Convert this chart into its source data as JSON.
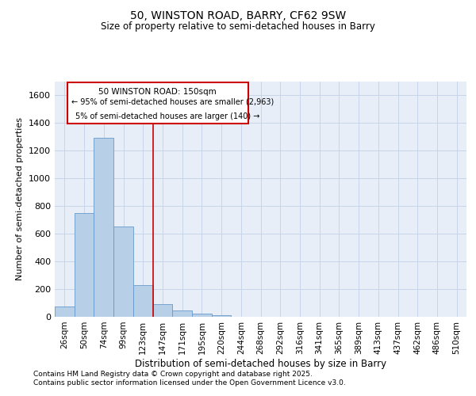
{
  "title1": "50, WINSTON ROAD, BARRY, CF62 9SW",
  "title2": "Size of property relative to semi-detached houses in Barry",
  "xlabel": "Distribution of semi-detached houses by size in Barry",
  "ylabel": "Number of semi-detached properties",
  "categories": [
    "26sqm",
    "50sqm",
    "74sqm",
    "99sqm",
    "123sqm",
    "147sqm",
    "171sqm",
    "195sqm",
    "220sqm",
    "244sqm",
    "268sqm",
    "292sqm",
    "316sqm",
    "341sqm",
    "365sqm",
    "389sqm",
    "413sqm",
    "437sqm",
    "462sqm",
    "486sqm",
    "510sqm"
  ],
  "values": [
    75,
    750,
    1290,
    650,
    230,
    90,
    45,
    25,
    10,
    0,
    0,
    0,
    0,
    0,
    0,
    0,
    0,
    0,
    0,
    0,
    0
  ],
  "bar_color": "#b8cfe8",
  "bar_edge_color": "#6699cc",
  "vline_color": "#cc0000",
  "vline_index": 4.5,
  "ylim": [
    0,
    1700
  ],
  "yticks": [
    0,
    200,
    400,
    600,
    800,
    1000,
    1200,
    1400,
    1600
  ],
  "legend_title": "50 WINSTON ROAD: 150sqm",
  "legend_line1": "← 95% of semi-detached houses are smaller (2,963)",
  "legend_line2": "5% of semi-detached houses are larger (140) →",
  "footer1": "Contains HM Land Registry data © Crown copyright and database right 2025.",
  "footer2": "Contains public sector information licensed under the Open Government Licence v3.0.",
  "grid_color": "#c8d4e8",
  "background_color": "#e8eef8"
}
